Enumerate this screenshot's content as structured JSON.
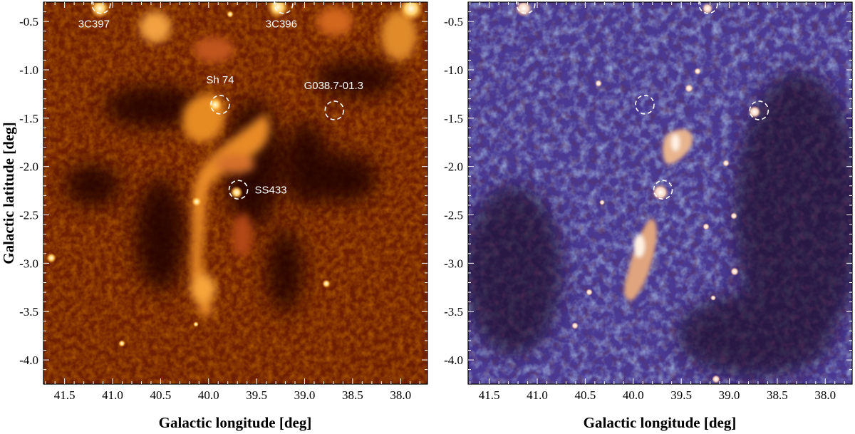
{
  "figure": {
    "x_axis_title": "Galactic longitude [deg]",
    "y_axis_title": "Galactic latitude [deg]",
    "x_ticks": [
      "41.5",
      "41.0",
      "40.5",
      "40.0",
      "39.5",
      "39.0",
      "38.5",
      "38.0"
    ],
    "y_ticks": [
      "-0.5",
      "-1.0",
      "-1.5",
      "-2.0",
      "-2.5",
      "-3.0",
      "-3.5",
      "-4.0"
    ],
    "left_panel": {
      "colormap": "black-red-orange-white",
      "sources": [
        {
          "name": "3C397",
          "l": 41.12,
          "b": -0.32
        },
        {
          "name": "3C396",
          "l": 39.22,
          "b": -0.32
        },
        {
          "name": "Sh 74",
          "l": 39.88,
          "b": -1.36
        },
        {
          "name": "G038.7-01.3",
          "l": 38.69,
          "b": -1.42
        },
        {
          "name": "SS433",
          "l": 39.69,
          "b": -2.24
        }
      ]
    },
    "right_panel": {
      "colormap": "dark purple-blue-light blue with white-orange bright regions",
      "marked_positions": [
        {
          "l": 41.12,
          "b": -0.32
        },
        {
          "l": 39.22,
          "b": -0.32
        },
        {
          "l": 39.88,
          "b": -1.36
        },
        {
          "l": 38.69,
          "b": -1.42
        },
        {
          "l": 39.69,
          "b": -2.24
        }
      ]
    },
    "x_range": [
      41.72,
      37.72
    ],
    "y_range": [
      -4.25,
      -0.3
    ]
  }
}
